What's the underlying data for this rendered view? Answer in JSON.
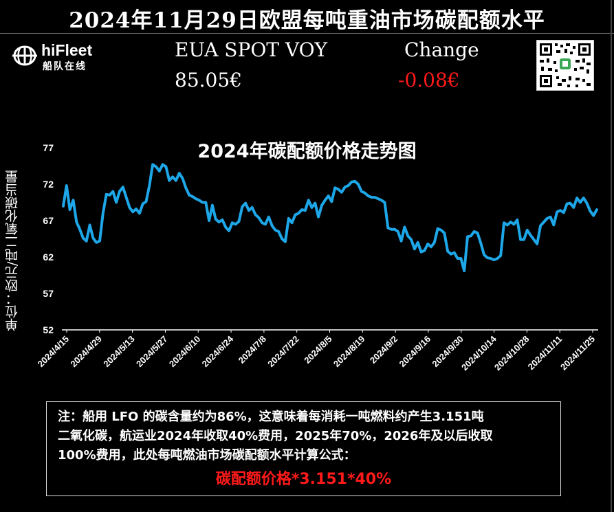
{
  "header": {
    "title": "2024年11月29日欧盟每吨重油市场碳配额水平"
  },
  "logo": {
    "name": "hiFleet",
    "subtitle": "船队在线"
  },
  "quote": {
    "label": "EUA SPOT VOY",
    "price": "85.05€",
    "change_label": "Change",
    "change": "-0.08€"
  },
  "colors": {
    "background": "#000000",
    "line": "#1ea7e8",
    "negative": "#ff1a1a",
    "text": "#ffffff"
  },
  "chart_data": {
    "type": "line",
    "title": "2024年碳配额价格走势图",
    "ylabel": "单位：欧元/吨二氧化碳当量",
    "xlabel": "",
    "ylim": [
      52,
      77
    ],
    "yticks": [
      52,
      57,
      62,
      67,
      72,
      77
    ],
    "xticks": [
      "2024/4/15",
      "2024/4/29",
      "2024/5/13",
      "2024/5/27",
      "2024/6/10",
      "2024/6/24",
      "2024/7/8",
      "2024/7/22",
      "2024/8/5",
      "2024/8/19",
      "2024/9/2",
      "2024/9/16",
      "2024/9/30",
      "2024/10/14",
      "2024/10/28",
      "2024/11/11",
      "2024/11/25"
    ],
    "grid": false,
    "series": [
      {
        "values": [
          69,
          71.8,
          68.5,
          69.8,
          66.8,
          65.8,
          64.6,
          64.2,
          66.4,
          64.6,
          64,
          64.2,
          68,
          70.6,
          70.5,
          71,
          69.5,
          71,
          71.6,
          70.2,
          68.8,
          68.2,
          68.6,
          68,
          69.3,
          69.6,
          71.8,
          74.7,
          74.4,
          73.8,
          74.7,
          74.4,
          72.5,
          73,
          72.5,
          73.5,
          72.8,
          71.5,
          70.5,
          70.3,
          70,
          69.8,
          69.5,
          69.5,
          67,
          69.1,
          67.2,
          66.8,
          67.1,
          66.1,
          65.6,
          66.7,
          66.5,
          66.9,
          68.9,
          69.4,
          68.4,
          68.8,
          67.8,
          67.4,
          66.7,
          66.5,
          67.5,
          66.3,
          65.7,
          65.5,
          64.5,
          64.1,
          67.3,
          66.7,
          67.8,
          68,
          68.5,
          68.4,
          69.8,
          68.8,
          69.4,
          67.5,
          69.1,
          69.8,
          70.4,
          69.6,
          71.5,
          71.3,
          70.9,
          71.6,
          71.8,
          72.3,
          72.4,
          72,
          71,
          70.8,
          70.4,
          70.2,
          70.2,
          70,
          69.8,
          69.5,
          66,
          65.8,
          65.8,
          65.5,
          64.2,
          66.1,
          64.9,
          64.4,
          63.1,
          64,
          62.7,
          62.9,
          63.8,
          63.4,
          64,
          65.9,
          65.7,
          65.3,
          62.8,
          62.4,
          62.6,
          61.8,
          61.8,
          60.1,
          64.8,
          64.9,
          65.5,
          65.3,
          63.9,
          62.3,
          61.9,
          61.8,
          61.6,
          61.8,
          62.2,
          66.7,
          66.4,
          66.8,
          66.5,
          67.1,
          64.4,
          64.4,
          65.7,
          65,
          64.4,
          63.8,
          66.3,
          66.8,
          67.3,
          67.5,
          66.4,
          68.2,
          68.4,
          68.1,
          69.3,
          69.4,
          68.8,
          70.1,
          69.5,
          70.1,
          69.4,
          68.3,
          67.7,
          68.5
        ]
      }
    ]
  },
  "note": {
    "lines": [
      "注：船用 LFO 的碳含量约为86%，这意味着每消耗一吨燃料约产生3.151吨",
      "二氧化碳，航运业2024年收取40%费用，2025年70%，2026年及以后收取",
      "100%费用，此处每吨燃油市场碳配额水平计算公式："
    ],
    "formula": "碳配额价格*3.151*40%"
  }
}
